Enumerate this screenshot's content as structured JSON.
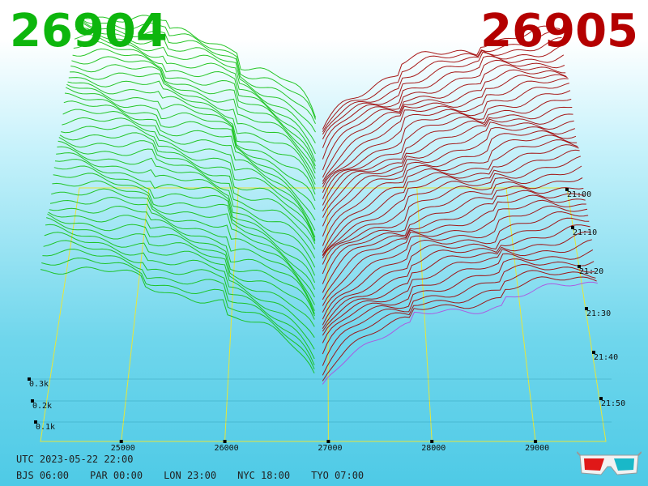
{
  "header": {
    "left_price": "26904",
    "right_price": "26905",
    "left_color": "#0db60d",
    "right_color": "#b40000"
  },
  "footer": {
    "utc_line": "UTC 2023-05-22 22:00",
    "zones": [
      "BJS 06:00",
      "PAR 00:00",
      "LON 23:00",
      "NYC 18:00",
      "TYO 07:00"
    ]
  },
  "icons": {
    "glasses": "3d-glasses-icon"
  },
  "chart_data": {
    "type": "area",
    "title": "",
    "x_ticks": [
      25000,
      26000,
      27000,
      28000,
      29000
    ],
    "x_tick_labels": [
      "25000",
      "26000",
      "27000",
      "28000",
      "29000"
    ],
    "z_ticks": [
      "0.1k",
      "0.2k",
      "0.3k"
    ],
    "time_ticks": [
      "21:00",
      "21:10",
      "21:20",
      "21:30",
      "21:40",
      "21:50"
    ],
    "mid_price": 26904.5,
    "series": [
      {
        "side": "bid",
        "color": "#11c011"
      },
      {
        "side": "ask",
        "color": "#a00000"
      }
    ]
  }
}
